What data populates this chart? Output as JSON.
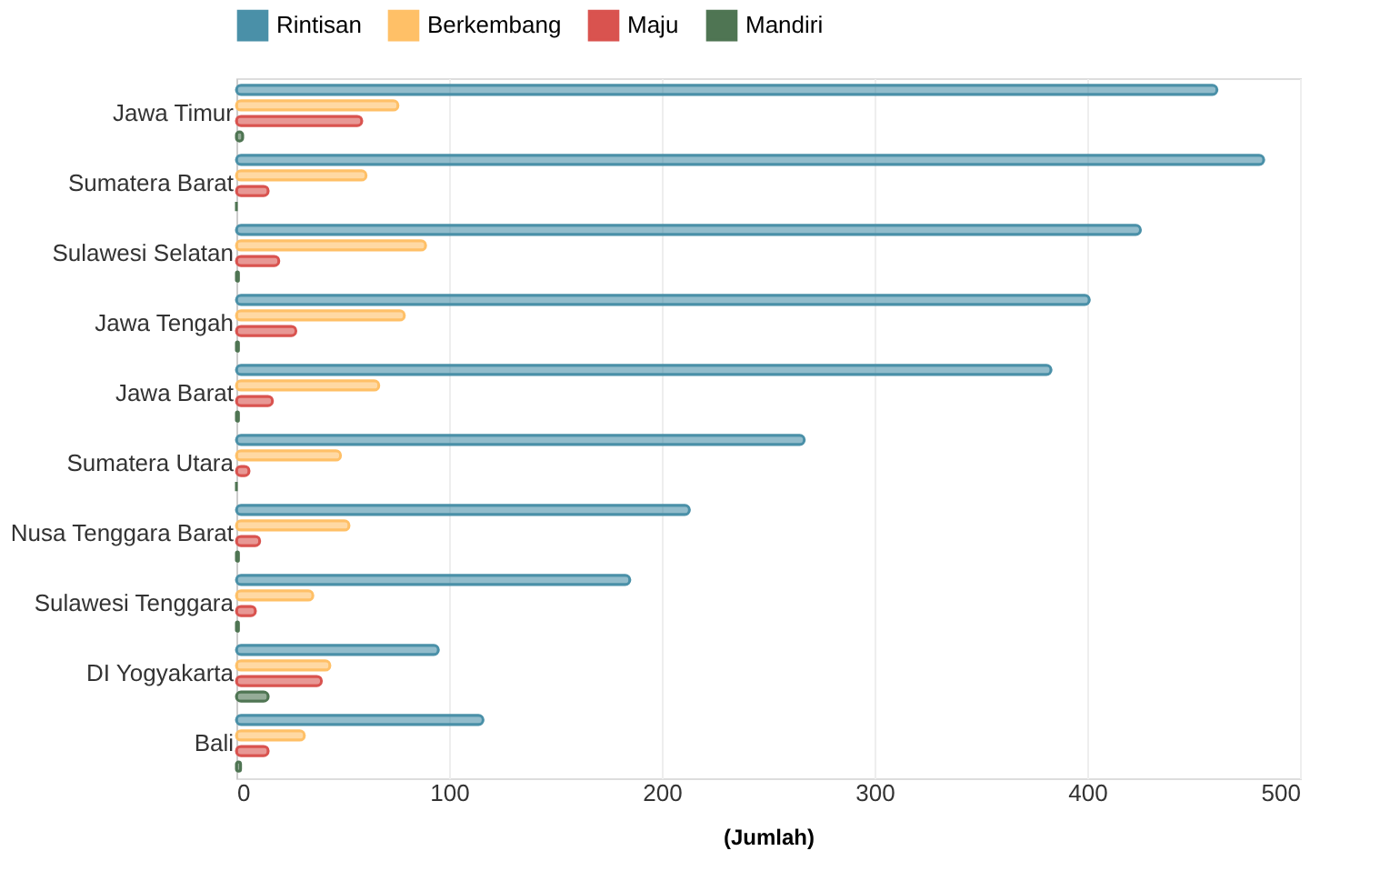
{
  "chart_data": {
    "type": "bar",
    "orientation": "horizontal",
    "xlabel": "(Jumlah)",
    "categories": [
      "Jawa Timur",
      "Sumatera Barat",
      "Sulawesi Selatan",
      "Jawa Tengah",
      "Jawa Barat",
      "Sumatera Utara",
      "Nusa Tenggara Barat",
      "Sulawesi Tenggara",
      "DI Yogyakarta",
      "Bali"
    ],
    "series": [
      {
        "name": "Rintisan",
        "color": "#4a90a8",
        "values": [
          461,
          483,
          425,
          401,
          383,
          267,
          213,
          185,
          95,
          116
        ]
      },
      {
        "name": "Berkembang",
        "color": "#ffc067",
        "values": [
          76,
          61,
          89,
          79,
          67,
          49,
          53,
          36,
          44,
          32
        ]
      },
      {
        "name": "Maju",
        "color": "#d9534f",
        "values": [
          59,
          15,
          20,
          28,
          17,
          6,
          11,
          9,
          40,
          15
        ]
      },
      {
        "name": "Mandiri",
        "color": "#4f7553",
        "values": [
          3,
          0,
          1,
          1,
          1,
          0,
          1,
          1,
          15,
          2
        ]
      }
    ],
    "xlim": [
      0,
      500
    ],
    "xticks": [
      0,
      100,
      200,
      300,
      400,
      500
    ],
    "grid": "x",
    "legend": "top"
  }
}
